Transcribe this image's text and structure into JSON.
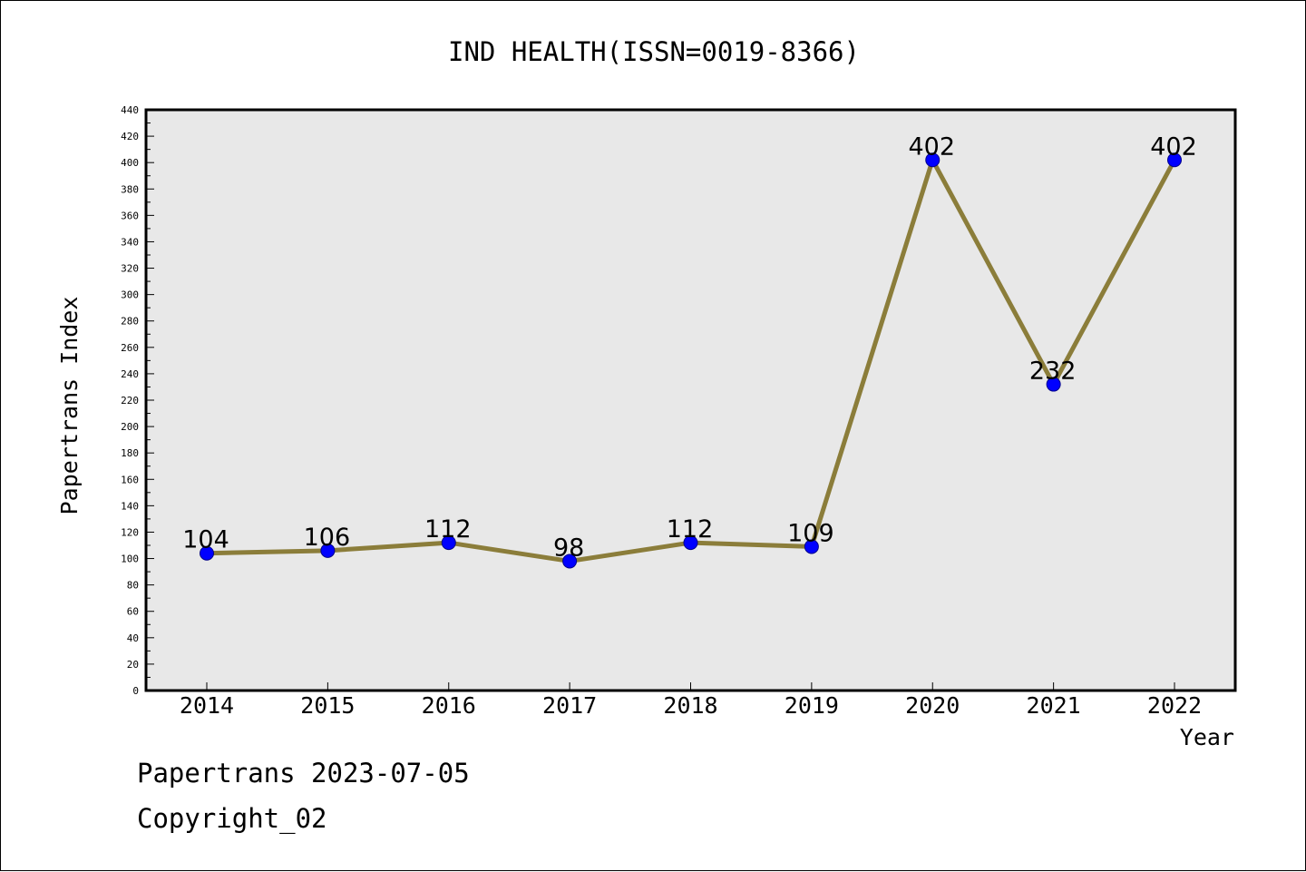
{
  "chart_data": {
    "type": "line",
    "title": "IND HEALTH(ISSN=0019-8366)",
    "xlabel": "Year",
    "ylabel": "Papertrans Index",
    "categories": [
      "2014",
      "2015",
      "2016",
      "2017",
      "2018",
      "2019",
      "2020",
      "2021",
      "2022"
    ],
    "series": [
      {
        "values": [
          104,
          106,
          112,
          98,
          112,
          109,
          402,
          232,
          402
        ]
      }
    ],
    "data_labels": [
      "104",
      "106",
      "112",
      "98",
      "112",
      "109",
      "402",
      "232",
      "402"
    ],
    "ylim": [
      0,
      440
    ],
    "y_major_ticks": [
      0,
      20,
      40,
      60,
      80,
      100,
      120,
      140,
      160,
      180,
      200,
      220,
      240,
      260,
      280,
      300,
      320,
      340,
      360,
      380,
      400,
      420,
      440
    ],
    "y_minor_step": 10,
    "grid": false,
    "legend": "none",
    "colors": {
      "plot_background": "#e8e8e8",
      "line": "#8b7d3a",
      "marker_fill": "#0000ff",
      "marker_edge": "#00008b",
      "axis": "#000000"
    }
  },
  "footer": {
    "date_line": "Papertrans 2023-07-05",
    "copyright_line": "Copyright_02"
  }
}
